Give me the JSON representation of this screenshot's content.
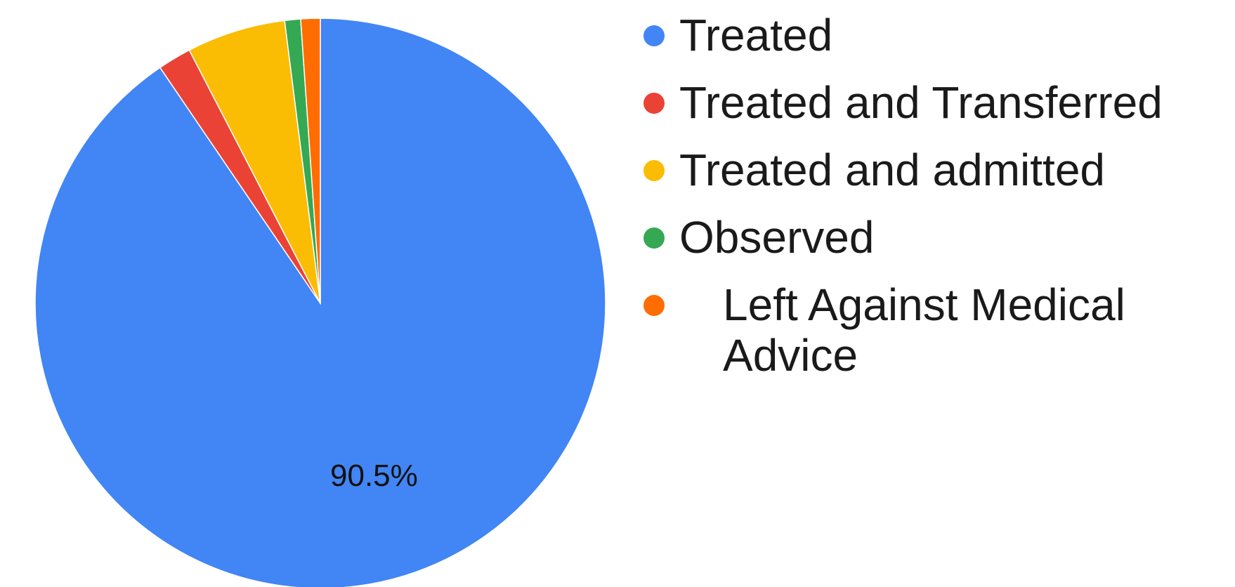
{
  "chart_data": {
    "type": "pie",
    "title": "",
    "start_angle_deg": 0,
    "direction": "clockwise",
    "slices": [
      {
        "label": "Treated",
        "value": 90.5,
        "color": "#4285F4",
        "data_label": "90.5%"
      },
      {
        "label": "Treated and Transferred",
        "value": 1.9,
        "color": "#EA4335",
        "data_label": ""
      },
      {
        "label": "Treated and admitted",
        "value": 5.6,
        "color": "#FBBC04",
        "data_label": ""
      },
      {
        "label": "Observed",
        "value": 0.9,
        "color": "#34A853",
        "data_label": ""
      },
      {
        "label": "Left Against Medical Advice",
        "value": 1.1,
        "color": "#FF6D01",
        "data_label": ""
      }
    ],
    "legend_position": "right"
  }
}
